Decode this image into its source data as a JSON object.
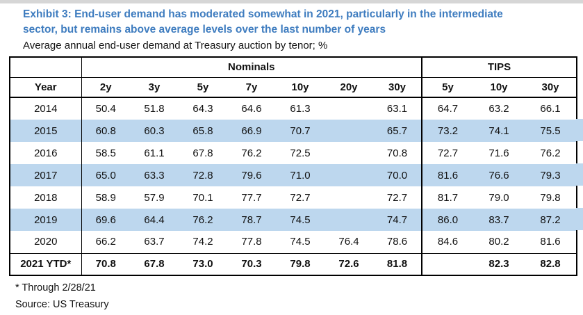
{
  "header": {
    "title_line1": "Exhibit 3: End-user demand has moderated somewhat in 2021, particularly in the intermediate",
    "title_line2": "sector, but remains above average levels over the last number of years",
    "subtitle": "Average annual end-user demand at Treasury auction by tenor; %"
  },
  "table": {
    "groups": {
      "nominals": "Nominals",
      "tips": "TIPS"
    },
    "columns": [
      "Year",
      "2y",
      "3y",
      "5y",
      "7y",
      "10y",
      "20y",
      "30y",
      "5y",
      "10y",
      "30y"
    ],
    "rows": [
      {
        "year": "2014",
        "highlight": false,
        "total": false,
        "values": [
          "50.4",
          "51.8",
          "64.3",
          "64.6",
          "61.3",
          "",
          "63.1",
          "64.7",
          "63.2",
          "66.1"
        ]
      },
      {
        "year": "2015",
        "highlight": true,
        "total": false,
        "values": [
          "60.8",
          "60.3",
          "65.8",
          "66.9",
          "70.7",
          "",
          "65.7",
          "73.2",
          "74.1",
          "75.5"
        ]
      },
      {
        "year": "2016",
        "highlight": false,
        "total": false,
        "values": [
          "58.5",
          "61.1",
          "67.8",
          "76.2",
          "72.5",
          "",
          "70.8",
          "72.7",
          "71.6",
          "76.2"
        ]
      },
      {
        "year": "2017",
        "highlight": true,
        "total": false,
        "values": [
          "65.0",
          "63.3",
          "72.8",
          "79.6",
          "71.0",
          "",
          "70.0",
          "81.6",
          "76.6",
          "79.3"
        ]
      },
      {
        "year": "2018",
        "highlight": false,
        "total": false,
        "values": [
          "58.9",
          "57.9",
          "70.1",
          "77.7",
          "72.7",
          "",
          "72.7",
          "81.7",
          "79.0",
          "79.8"
        ]
      },
      {
        "year": "2019",
        "highlight": true,
        "total": false,
        "values": [
          "69.6",
          "64.4",
          "76.2",
          "78.7",
          "74.5",
          "",
          "74.7",
          "86.0",
          "83.7",
          "87.2"
        ]
      },
      {
        "year": "2020",
        "highlight": false,
        "total": false,
        "values": [
          "66.2",
          "63.7",
          "74.2",
          "77.8",
          "74.5",
          "76.4",
          "78.6",
          "84.6",
          "80.2",
          "81.6"
        ]
      },
      {
        "year": "2021 YTD*",
        "highlight": false,
        "total": true,
        "values": [
          "70.8",
          "67.8",
          "73.0",
          "70.3",
          "79.8",
          "72.6",
          "81.8",
          "",
          "82.3",
          "82.8"
        ]
      }
    ]
  },
  "footnotes": {
    "through": "* Through 2/28/21",
    "source": "Source: US Treasury"
  },
  "colors": {
    "title_blue": "#3e7cbf",
    "row_highlight": "#bdd7ee",
    "border": "#000000"
  }
}
